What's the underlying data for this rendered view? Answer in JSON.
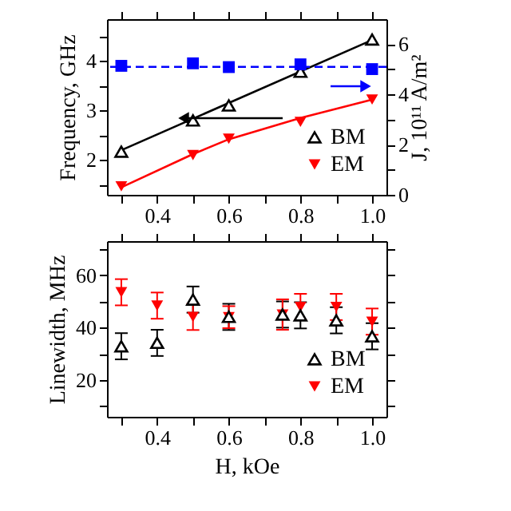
{
  "chart_data": [
    {
      "type": "scatter",
      "ylabel": "Frequency, GHz",
      "y2label": "J, 10¹¹ A/m²",
      "xlim": [
        0.26,
        1.04
      ],
      "ylim": [
        1.3,
        4.84
      ],
      "y2lim": [
        0,
        7
      ],
      "grid": false,
      "legend": "bottom right",
      "xticks": [
        {
          "value": 0.3,
          "label": null
        },
        0.4,
        {
          "value": 0.5,
          "label": null
        },
        0.6,
        {
          "value": 0.7,
          "label": null
        },
        0.8,
        {
          "value": 0.9,
          "label": null
        },
        {
          "value": 1.0,
          "label": "1.0"
        }
      ],
      "yticks": [
        {
          "value": 1.5,
          "label": null
        },
        2,
        {
          "value": 2.5,
          "label": null
        },
        3,
        {
          "value": 3.5,
          "label": null
        },
        4,
        {
          "value": 4.5,
          "label": null
        }
      ],
      "y2ticks": [
        0,
        {
          "value": 1,
          "label": null
        },
        2,
        {
          "value": 3,
          "label": null
        },
        4,
        {
          "value": 5,
          "label": null
        },
        6
      ],
      "ref_lines": [
        {
          "axis": "y2",
          "value": 5.1,
          "color": "#0000ff",
          "line_style": "dashed"
        }
      ],
      "series": [
        {
          "type": "line",
          "color": "#000000",
          "x": [
            0.3,
            1.0
          ],
          "values": [
            2.2,
            4.42
          ]
        },
        {
          "type": "line",
          "color": "#ff0000",
          "x": [
            0.3,
            0.5,
            0.6,
            0.8,
            1.0
          ],
          "values": [
            1.45,
            2.12,
            2.42,
            2.85,
            3.22
          ]
        },
        {
          "name": "BM",
          "marker": "triangle",
          "color": "#000000",
          "x": [
            0.3,
            0.5,
            0.6,
            0.8,
            1.0
          ],
          "values": [
            2.17,
            2.8,
            3.1,
            3.78,
            4.43
          ]
        },
        {
          "name": "EM",
          "marker": "triangle-down",
          "color": "#ff0000",
          "x": [
            0.3,
            0.5,
            0.6,
            0.8,
            1.0
          ],
          "values": [
            1.47,
            2.1,
            2.43,
            2.77,
            3.22
          ]
        },
        {
          "marker": "square",
          "color": "#0000ff",
          "axis": "y2",
          "x": [
            0.3,
            0.5,
            0.6,
            0.8,
            1.0
          ],
          "values": [
            5.14,
            5.24,
            5.09,
            5.2,
            5.01
          ]
        }
      ]
    },
    {
      "type": "scatter",
      "xlabel": "H, kOe",
      "ylabel": "Linewidth, MHz",
      "xlim": [
        0.26,
        1.04
      ],
      "ylim": [
        6,
        73
      ],
      "grid": false,
      "legend": "bottom right",
      "xticks": [
        {
          "value": 0.3,
          "label": null
        },
        0.4,
        {
          "value": 0.5,
          "label": null
        },
        0.6,
        {
          "value": 0.7,
          "label": null
        },
        0.8,
        {
          "value": 0.9,
          "label": null
        },
        {
          "value": 1.0,
          "label": "1.0"
        }
      ],
      "yticks": [
        {
          "value": 10,
          "label": null
        },
        20,
        {
          "value": 30,
          "label": null
        },
        40,
        {
          "value": 50,
          "label": null
        },
        60,
        {
          "value": 70,
          "label": null
        }
      ],
      "series": [
        {
          "name": "EM",
          "marker": "triangle-down",
          "color": "#ff0000",
          "x": [
            0.3,
            0.4,
            0.5,
            0.6,
            0.75,
            0.8,
            0.9,
            1.0
          ],
          "values": [
            53.5,
            48.4,
            44.1,
            44,
            45,
            47.9,
            47.9,
            42.3
          ],
          "errors": [
            5,
            5,
            5,
            4.2,
            5.8,
            5,
            5,
            5
          ]
        },
        {
          "name": "BM",
          "marker": "triangle",
          "color": "#000000",
          "x": [
            0.3,
            0.4,
            0.5,
            0.6,
            0.75,
            0.8,
            0.9,
            1.0
          ],
          "values": [
            32.9,
            34.2,
            50.7,
            44.1,
            45,
            44.7,
            42.8,
            36.7
          ],
          "errors": [
            5,
            5,
            5,
            5,
            5,
            5,
            5,
            5
          ]
        }
      ]
    }
  ]
}
